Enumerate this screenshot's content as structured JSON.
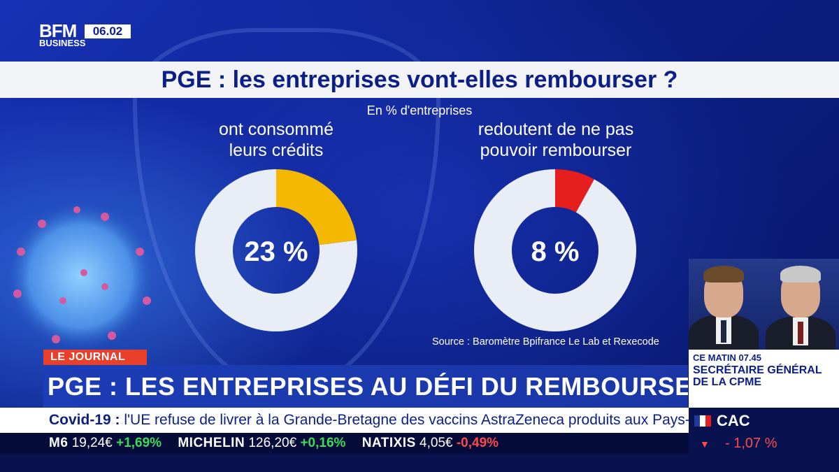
{
  "header": {
    "logo_line1": "BFM",
    "logo_line2": "BUSINESS",
    "time": "06.02"
  },
  "chart": {
    "title": "PGE : les entreprises vont-elles rembourser ?",
    "subtitle": "En % d'entreprises",
    "source": "Source : Baromètre Bpifrance Le Lab et Rexecode"
  },
  "chart_data": [
    {
      "type": "pie",
      "variant": "donut",
      "label": "ont consommé leurs crédits",
      "label_lines": [
        "ont consommé",
        "leurs crédits"
      ],
      "value": 23,
      "value_text": "23 %",
      "unit": "%",
      "color": "#f5b800",
      "rest_color": "#e9edf5"
    },
    {
      "type": "pie",
      "variant": "donut",
      "label": "redoutent de ne pas pouvoir rembourser",
      "label_lines": [
        "redoutent de ne pas",
        "pouvoir rembourser"
      ],
      "value": 8,
      "value_text": "8 %",
      "unit": "%",
      "color": "#e61e1e",
      "rest_color": "#e9edf5"
    }
  ],
  "lower_third": {
    "tag": "LE JOURNAL",
    "headline": "PGE : LES ENTREPRISES AU DÉFI DU REMBOURSEMENT",
    "ticker_bold": "Covid-19 :",
    "ticker_text": " l'UE refuse de livrer à la Grande-Bretagne des vaccins AstraZeneca produits aux Pays-Bas."
  },
  "program": {
    "time": "CE MATIN 07.45",
    "title": "SECRÉTAIRE GÉNÉRAL DE LA CPME"
  },
  "index": {
    "name": "CAC",
    "change": "- 1,07 %",
    "colors": {
      "down": "#ff4a4a"
    }
  },
  "stocks": [
    {
      "name": "M6",
      "price": "19,24€",
      "change": "+1,69%",
      "direction": "up"
    },
    {
      "name": "MICHELIN",
      "price": "126,20€",
      "change": "+0,16%",
      "direction": "up"
    },
    {
      "name": "NATIXIS",
      "price": "4,05€",
      "change": "-0,49%",
      "direction": "down"
    }
  ]
}
